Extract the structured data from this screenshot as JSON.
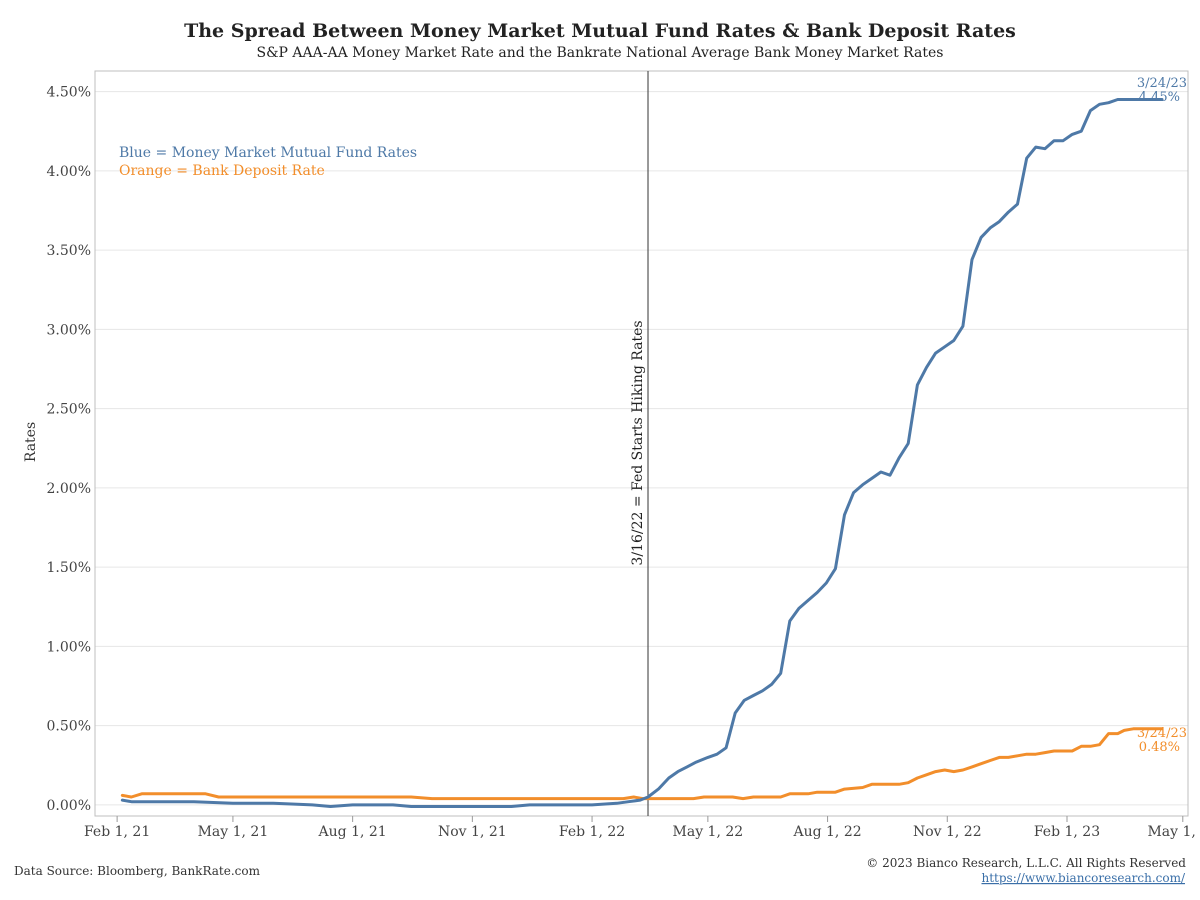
{
  "colors": {
    "blue": "#4e79a7",
    "orange": "#f28e2b",
    "vline": "#555555",
    "grid": "#e6e6e6"
  },
  "title": "The Spread Between Money Market Mutual Fund Rates & Bank Deposit Rates",
  "subtitle": "S&P AAA-AA Money Market Rate and the Bankrate National Average Bank Money Market Rates",
  "legend": {
    "blue": "Blue = Money Market Mutual Fund Rates",
    "orange": "Orange = Bank Deposit Rate"
  },
  "vline": {
    "date": "2022-03-16",
    "label": "3/16/22 = Fed Starts Hiking Rates"
  },
  "end_labels": {
    "blue_date": "3/24/23",
    "blue_value": "4.45%",
    "orange_date": "3/24/23",
    "orange_value": "0.48%"
  },
  "footer": {
    "source": "Data Source: Bloomberg, BankRate.com",
    "copyright": "© 2023 Bianco Research, L.L.C. All Rights Reserved",
    "url": "https://www.biancoresearch.com/"
  },
  "chart_data": {
    "type": "line",
    "title": "The Spread Between Money Market Mutual Fund Rates & Bank Deposit Rates",
    "subtitle": "S&P AAA-AA Money Market Rate and the Bankrate National Average Bank Money Market Rates",
    "xlabel": "",
    "ylabel": "Rates",
    "xlim": [
      "2021-01-15",
      "2023-05-05"
    ],
    "ylim": [
      -0.07,
      4.63
    ],
    "x_ticks": [
      "2021-02-01",
      "2021-05-01",
      "2021-08-01",
      "2021-11-01",
      "2022-02-01",
      "2022-05-01",
      "2022-08-01",
      "2022-11-01",
      "2023-02-01",
      "2023-05-01"
    ],
    "x_tick_labels": [
      "Feb 1, 21",
      "May 1, 21",
      "Aug 1, 21",
      "Nov 1, 21",
      "Feb 1, 22",
      "May 1, 22",
      "Aug 1, 22",
      "Nov 1, 22",
      "Feb 1, 23",
      "May 1, 23"
    ],
    "y_ticks": [
      0,
      0.5,
      1.0,
      1.5,
      2.0,
      2.5,
      3.0,
      3.5,
      4.0,
      4.5
    ],
    "y_tick_labels": [
      "0.00%",
      "0.50%",
      "1.00%",
      "1.50%",
      "2.00%",
      "2.50%",
      "3.00%",
      "3.50%",
      "4.00%",
      "4.50%"
    ],
    "grid": true,
    "series": [
      {
        "color": "#4e79a7",
        "points": [
          [
            "2021-02-05",
            0.03
          ],
          [
            "2021-02-12",
            0.02
          ],
          [
            "2021-03-01",
            0.02
          ],
          [
            "2021-04-01",
            0.02
          ],
          [
            "2021-05-01",
            0.01
          ],
          [
            "2021-06-01",
            0.01
          ],
          [
            "2021-07-01",
            0.0
          ],
          [
            "2021-07-15",
            -0.01
          ],
          [
            "2021-08-01",
            0.0
          ],
          [
            "2021-09-01",
            0.0
          ],
          [
            "2021-09-15",
            -0.01
          ],
          [
            "2021-10-01",
            -0.01
          ],
          [
            "2021-11-01",
            -0.01
          ],
          [
            "2021-12-01",
            -0.01
          ],
          [
            "2021-12-15",
            0.0
          ],
          [
            "2022-01-01",
            0.0
          ],
          [
            "2022-02-01",
            0.0
          ],
          [
            "2022-02-20",
            0.01
          ],
          [
            "2022-03-01",
            0.02
          ],
          [
            "2022-03-10",
            0.03
          ],
          [
            "2022-03-16",
            0.05
          ],
          [
            "2022-03-24",
            0.1
          ],
          [
            "2022-04-01",
            0.17
          ],
          [
            "2022-04-08",
            0.21
          ],
          [
            "2022-04-15",
            0.24
          ],
          [
            "2022-04-22",
            0.27
          ],
          [
            "2022-05-01",
            0.3
          ],
          [
            "2022-05-08",
            0.32
          ],
          [
            "2022-05-15",
            0.36
          ],
          [
            "2022-05-22",
            0.58
          ],
          [
            "2022-05-29",
            0.66
          ],
          [
            "2022-06-05",
            0.69
          ],
          [
            "2022-06-12",
            0.72
          ],
          [
            "2022-06-19",
            0.76
          ],
          [
            "2022-06-26",
            0.83
          ],
          [
            "2022-07-03",
            1.16
          ],
          [
            "2022-07-10",
            1.24
          ],
          [
            "2022-07-17",
            1.29
          ],
          [
            "2022-07-24",
            1.34
          ],
          [
            "2022-07-31",
            1.4
          ],
          [
            "2022-08-07",
            1.49
          ],
          [
            "2022-08-14",
            1.83
          ],
          [
            "2022-08-21",
            1.97
          ],
          [
            "2022-08-28",
            2.02
          ],
          [
            "2022-09-04",
            2.06
          ],
          [
            "2022-09-11",
            2.1
          ],
          [
            "2022-09-18",
            2.08
          ],
          [
            "2022-09-25",
            2.19
          ],
          [
            "2022-10-02",
            2.28
          ],
          [
            "2022-10-09",
            2.65
          ],
          [
            "2022-10-16",
            2.76
          ],
          [
            "2022-10-23",
            2.85
          ],
          [
            "2022-10-30",
            2.89
          ],
          [
            "2022-11-06",
            2.93
          ],
          [
            "2022-11-13",
            3.02
          ],
          [
            "2022-11-20",
            3.44
          ],
          [
            "2022-11-27",
            3.58
          ],
          [
            "2022-12-04",
            3.64
          ],
          [
            "2022-12-11",
            3.68
          ],
          [
            "2022-12-18",
            3.74
          ],
          [
            "2022-12-25",
            3.79
          ],
          [
            "2023-01-01",
            4.08
          ],
          [
            "2023-01-08",
            4.15
          ],
          [
            "2023-01-15",
            4.14
          ],
          [
            "2023-01-22",
            4.19
          ],
          [
            "2023-01-29",
            4.19
          ],
          [
            "2023-02-05",
            4.23
          ],
          [
            "2023-02-12",
            4.25
          ],
          [
            "2023-02-19",
            4.38
          ],
          [
            "2023-02-26",
            4.42
          ],
          [
            "2023-03-05",
            4.43
          ],
          [
            "2023-03-12",
            4.45
          ],
          [
            "2023-03-24",
            4.45
          ],
          [
            "2023-04-15",
            4.45
          ]
        ]
      },
      {
        "color": "#f28e2b",
        "points": [
          [
            "2021-02-05",
            0.06
          ],
          [
            "2021-02-12",
            0.05
          ],
          [
            "2021-02-20",
            0.07
          ],
          [
            "2021-03-15",
            0.07
          ],
          [
            "2021-04-10",
            0.07
          ],
          [
            "2021-04-20",
            0.05
          ],
          [
            "2021-06-01",
            0.05
          ],
          [
            "2021-08-01",
            0.05
          ],
          [
            "2021-09-15",
            0.05
          ],
          [
            "2021-10-01",
            0.04
          ],
          [
            "2021-11-01",
            0.04
          ],
          [
            "2021-12-01",
            0.04
          ],
          [
            "2022-01-01",
            0.04
          ],
          [
            "2022-02-01",
            0.04
          ],
          [
            "2022-02-25",
            0.04
          ],
          [
            "2022-03-05",
            0.05
          ],
          [
            "2022-03-12",
            0.04
          ],
          [
            "2022-04-01",
            0.04
          ],
          [
            "2022-04-20",
            0.04
          ],
          [
            "2022-04-28",
            0.05
          ],
          [
            "2022-05-20",
            0.05
          ],
          [
            "2022-05-28",
            0.04
          ],
          [
            "2022-06-05",
            0.05
          ],
          [
            "2022-06-26",
            0.05
          ],
          [
            "2022-07-03",
            0.07
          ],
          [
            "2022-07-17",
            0.07
          ],
          [
            "2022-07-24",
            0.08
          ],
          [
            "2022-08-07",
            0.08
          ],
          [
            "2022-08-14",
            0.1
          ],
          [
            "2022-08-28",
            0.11
          ],
          [
            "2022-09-04",
            0.13
          ],
          [
            "2022-09-25",
            0.13
          ],
          [
            "2022-10-02",
            0.14
          ],
          [
            "2022-10-09",
            0.17
          ],
          [
            "2022-10-16",
            0.19
          ],
          [
            "2022-10-23",
            0.21
          ],
          [
            "2022-10-30",
            0.22
          ],
          [
            "2022-11-06",
            0.21
          ],
          [
            "2022-11-13",
            0.22
          ],
          [
            "2022-11-20",
            0.24
          ],
          [
            "2022-11-27",
            0.26
          ],
          [
            "2022-12-04",
            0.28
          ],
          [
            "2022-12-11",
            0.3
          ],
          [
            "2022-12-18",
            0.3
          ],
          [
            "2022-12-25",
            0.31
          ],
          [
            "2023-01-01",
            0.32
          ],
          [
            "2023-01-08",
            0.32
          ],
          [
            "2023-01-15",
            0.33
          ],
          [
            "2023-01-22",
            0.34
          ],
          [
            "2023-01-29",
            0.34
          ],
          [
            "2023-02-05",
            0.34
          ],
          [
            "2023-02-12",
            0.37
          ],
          [
            "2023-02-19",
            0.37
          ],
          [
            "2023-02-26",
            0.38
          ],
          [
            "2023-03-05",
            0.45
          ],
          [
            "2023-03-12",
            0.45
          ],
          [
            "2023-03-17",
            0.47
          ],
          [
            "2023-03-24",
            0.48
          ],
          [
            "2023-04-15",
            0.48
          ]
        ]
      }
    ]
  }
}
